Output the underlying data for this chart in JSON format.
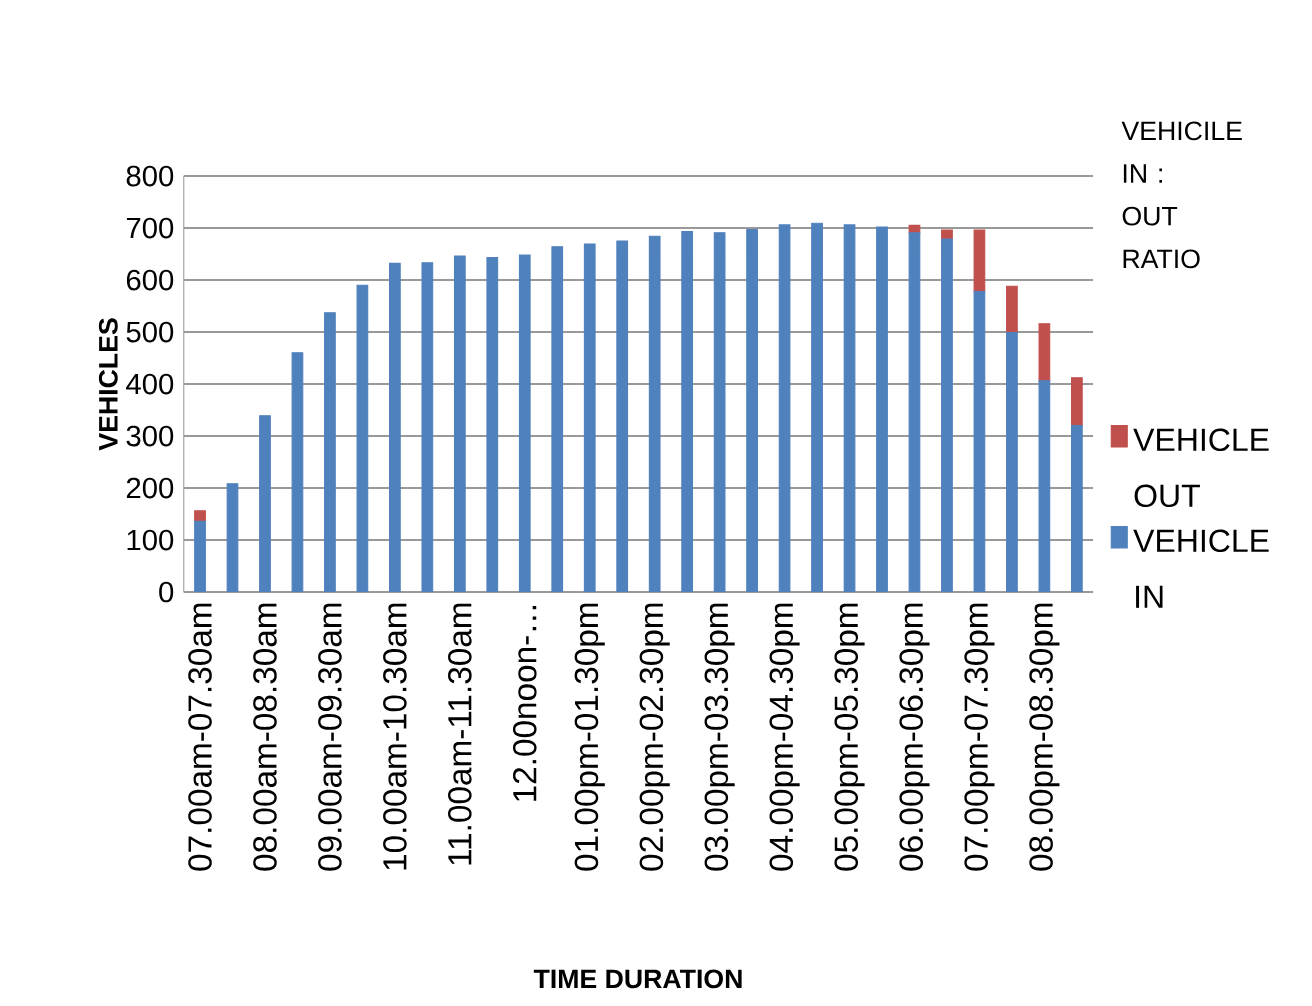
{
  "chart_data": {
    "type": "bar",
    "stacked": true,
    "xlabel": "TIME DURATION",
    "ylabel": "VEHICLES",
    "legend_title": "VEHICILE IN : OUT RATIO",
    "categories": [
      "07.00am-07.30am",
      null,
      "08.00am-08.30am",
      null,
      "09.00am-09.30am",
      null,
      "10.00am-10.30am",
      null,
      "11.00am-11.30am",
      null,
      "12.00noon-…",
      null,
      "01.00pm-01.30pm",
      null,
      "02.00pm-02.30pm",
      null,
      "03.00pm-03.30pm",
      null,
      "04.00pm-04.30pm",
      null,
      "05.00pm-05.30pm",
      null,
      "06.00pm-06.30pm",
      null,
      "07.00pm-07.30pm",
      null,
      "08.00pm-08.30pm",
      null
    ],
    "series": [
      {
        "name": "VEHICLE IN",
        "color": "#4f81bd",
        "values": [
          136,
          208,
          339,
          460,
          537,
          590,
          632,
          633,
          646,
          643,
          648,
          664,
          669,
          675,
          684,
          693,
          691,
          697,
          706,
          709,
          706,
          702,
          691,
          679,
          578,
          499,
          406,
          320
        ]
      },
      {
        "name": "VEHICLE OUT",
        "color": "#c0504d",
        "values": [
          20,
          0,
          0,
          0,
          0,
          0,
          0,
          0,
          0,
          0,
          0,
          0,
          0,
          0,
          0,
          0,
          0,
          0,
          0,
          0,
          0,
          0,
          14,
          17,
          118,
          89,
          110,
          92
        ]
      }
    ],
    "ylim": [
      0,
      800
    ],
    "yticks": [
      0,
      100,
      200,
      300,
      400,
      500,
      600,
      700,
      800
    ],
    "grid": "y",
    "legend": "right"
  }
}
